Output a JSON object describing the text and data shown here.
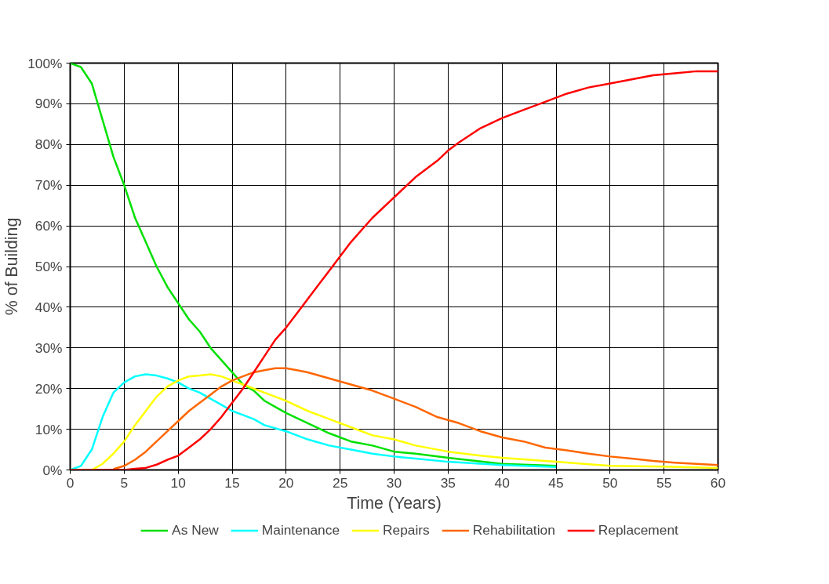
{
  "chart_data": {
    "type": "line",
    "xlabel": "Time (Years)",
    "ylabel": "% of Building",
    "xlim": [
      0,
      60
    ],
    "xticks": [
      0,
      5,
      10,
      15,
      20,
      25,
      30,
      35,
      40,
      45,
      50,
      55,
      60
    ],
    "ylim": [
      0,
      100
    ],
    "yticks": [
      {
        "value": 0,
        "label": "0%"
      },
      {
        "value": 10,
        "label": "10%"
      },
      {
        "value": 20,
        "label": "20%"
      },
      {
        "value": 30,
        "label": "30%"
      },
      {
        "value": 40,
        "label": "40%"
      },
      {
        "value": 50,
        "label": "50%"
      },
      {
        "value": 60,
        "label": "60%"
      },
      {
        "value": 70,
        "label": "70%"
      },
      {
        "value": 80,
        "label": "80%"
      },
      {
        "value": 90,
        "label": "90%"
      },
      {
        "value": 100,
        "label": "100%"
      }
    ],
    "grid": true,
    "legend": "bottom",
    "marker": "none",
    "line_style": "solid",
    "series": [
      {
        "name": "As New",
        "color": "#00e000",
        "x": [
          0,
          1,
          2,
          3,
          4,
          5,
          6,
          7,
          8,
          9,
          10,
          11,
          12,
          13,
          14,
          15,
          16,
          17,
          18,
          19,
          20,
          22,
          24,
          26,
          28,
          30,
          32,
          35,
          40,
          45
        ],
        "values": [
          100,
          99,
          95,
          86,
          77,
          70,
          62,
          56,
          50,
          45,
          41,
          37,
          34,
          30,
          27,
          24,
          21,
          19.5,
          17,
          15.5,
          14,
          11.5,
          9,
          7,
          6,
          4.5,
          4,
          3,
          1.5,
          1
        ]
      },
      {
        "name": "Maintenance",
        "color": "#00ffff",
        "x": [
          0,
          1,
          2,
          3,
          4,
          5,
          6,
          7,
          8,
          9,
          10,
          11,
          12,
          13,
          14,
          15,
          16,
          17,
          18,
          20,
          22,
          24,
          26,
          28,
          30,
          32,
          35,
          40,
          45
        ],
        "values": [
          0,
          1,
          5,
          13,
          19,
          21.5,
          23,
          23.5,
          23.2,
          22.5,
          21.5,
          20,
          19,
          17.5,
          16,
          14.5,
          13.5,
          12.5,
          11,
          9.5,
          7.5,
          6,
          5,
          4,
          3.3,
          2.8,
          2,
          1.2,
          0.7
        ]
      },
      {
        "name": "Repairs",
        "color": "#ffff00",
        "x": [
          0,
          2,
          3,
          4,
          5,
          6,
          7,
          8,
          9,
          10,
          11,
          12,
          13,
          14,
          15,
          16,
          18,
          20,
          22,
          24,
          26,
          28,
          30,
          32,
          35,
          38,
          40,
          45,
          50,
          55,
          60
        ],
        "values": [
          0,
          0,
          1.5,
          4,
          7,
          11,
          14.5,
          18,
          20.5,
          22,
          23,
          23.2,
          23.5,
          23,
          22,
          21,
          19,
          17,
          14.5,
          12.5,
          10.5,
          8.5,
          7.5,
          6,
          4.5,
          3.5,
          3,
          2,
          1,
          0.8,
          0.5
        ]
      },
      {
        "name": "Rehabilitation",
        "color": "#ff6600",
        "x": [
          4,
          5,
          6,
          7,
          8,
          9,
          10,
          11,
          12,
          13,
          14,
          15,
          16,
          17,
          18,
          19,
          20,
          21,
          22,
          24,
          26,
          28,
          30,
          32,
          34,
          36,
          38,
          40,
          42,
          44,
          46,
          48,
          50,
          52,
          54,
          56,
          58,
          60
        ],
        "values": [
          0.2,
          1,
          2.5,
          4.5,
          7,
          9.5,
          12,
          14.5,
          16.5,
          18.5,
          20.5,
          22,
          23,
          24,
          24.5,
          25,
          25,
          24.5,
          24,
          22.5,
          21,
          19.5,
          17.5,
          15.5,
          13,
          11.5,
          9.5,
          8,
          7,
          5.5,
          4.8,
          4,
          3.3,
          2.8,
          2.2,
          1.8,
          1.5,
          1.2
        ]
      },
      {
        "name": "Replacement",
        "color": "#ff0000",
        "x": [
          0,
          5,
          6,
          7,
          8,
          9,
          10,
          11,
          12,
          13,
          14,
          15,
          16,
          17,
          18,
          19,
          20,
          21,
          22,
          23,
          24,
          25,
          26,
          27,
          28,
          30,
          32,
          34,
          35,
          36,
          38,
          40,
          42,
          44,
          46,
          48,
          50,
          52,
          54,
          56,
          58,
          60
        ],
        "values": [
          0,
          0,
          0.3,
          0.5,
          1.3,
          2.5,
          3.5,
          5.5,
          7.5,
          10,
          13,
          16.5,
          20,
          24,
          28,
          32,
          35,
          38.5,
          42,
          45.5,
          49,
          52.5,
          56,
          59,
          62,
          67,
          72,
          76,
          78.5,
          80.5,
          84,
          86.5,
          88.5,
          90.5,
          92.5,
          94,
          95,
          96,
          97,
          97.5,
          98,
          98
        ]
      }
    ]
  }
}
